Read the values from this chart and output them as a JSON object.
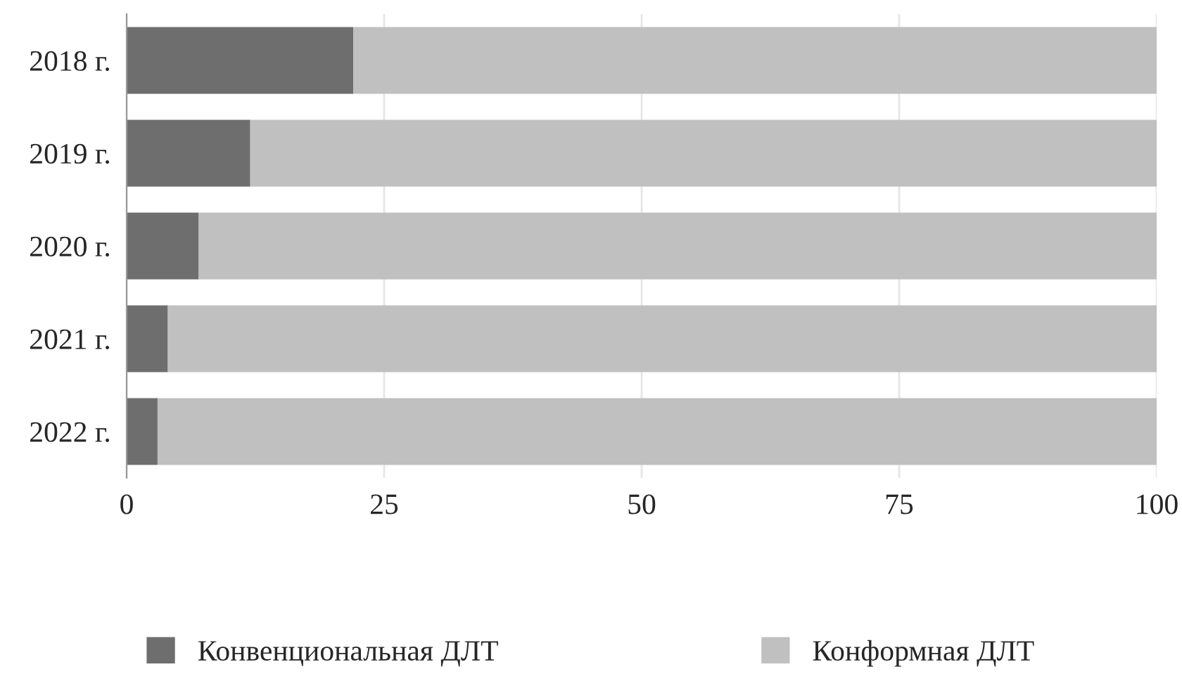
{
  "chart_data": {
    "type": "bar",
    "orientation": "horizontal",
    "stacked": true,
    "categories": [
      "2018 г.",
      "2019 г.",
      "2020 г.",
      "2021 г.",
      "2022 г."
    ],
    "series": [
      {
        "name": "Конвенциональная ДЛТ",
        "color": "#6e6e6e",
        "values": [
          22,
          12,
          7,
          4,
          3
        ]
      },
      {
        "name": "Конформная ДЛТ",
        "color": "#c0c0c0",
        "values": [
          78,
          88,
          93,
          96,
          97
        ]
      }
    ],
    "xlim": [
      0,
      100
    ],
    "xticks": [
      0,
      25,
      50,
      75,
      100
    ],
    "grid": "x",
    "legend": "bottom"
  }
}
